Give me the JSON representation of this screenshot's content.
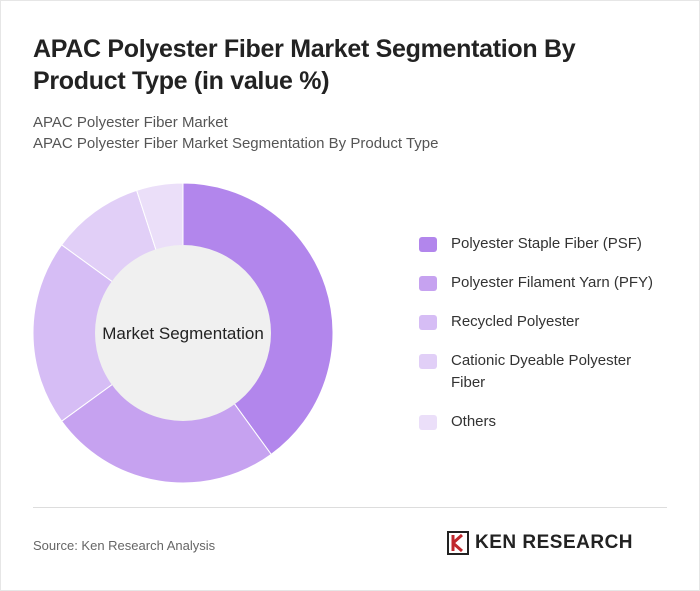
{
  "chart_data": {
    "type": "donut",
    "title": "APAC Polyester Fiber Market Segmentation By Product Type (in value %)",
    "subtitle": "APAC Polyester Fiber Market",
    "subtitle2": "APAC Polyester Fiber Market Segmentation By Product Type",
    "center_label": "Market Segmentation",
    "categories": [
      "Polyester Staple Fiber (PSF)",
      "Polyester Filament Yarn (PFY)",
      "Recycled Polyester",
      "Cationic Dyeable Polyester Fiber",
      "Others"
    ],
    "values": [
      40,
      25,
      20,
      10,
      5
    ],
    "colors": [
      "#b286ec",
      "#c6a2f0",
      "#d6bdf5",
      "#e1cff7",
      "#ebdff9"
    ]
  },
  "source": "Source: Ken Research Analysis",
  "logo": "KEN RESEARCH"
}
